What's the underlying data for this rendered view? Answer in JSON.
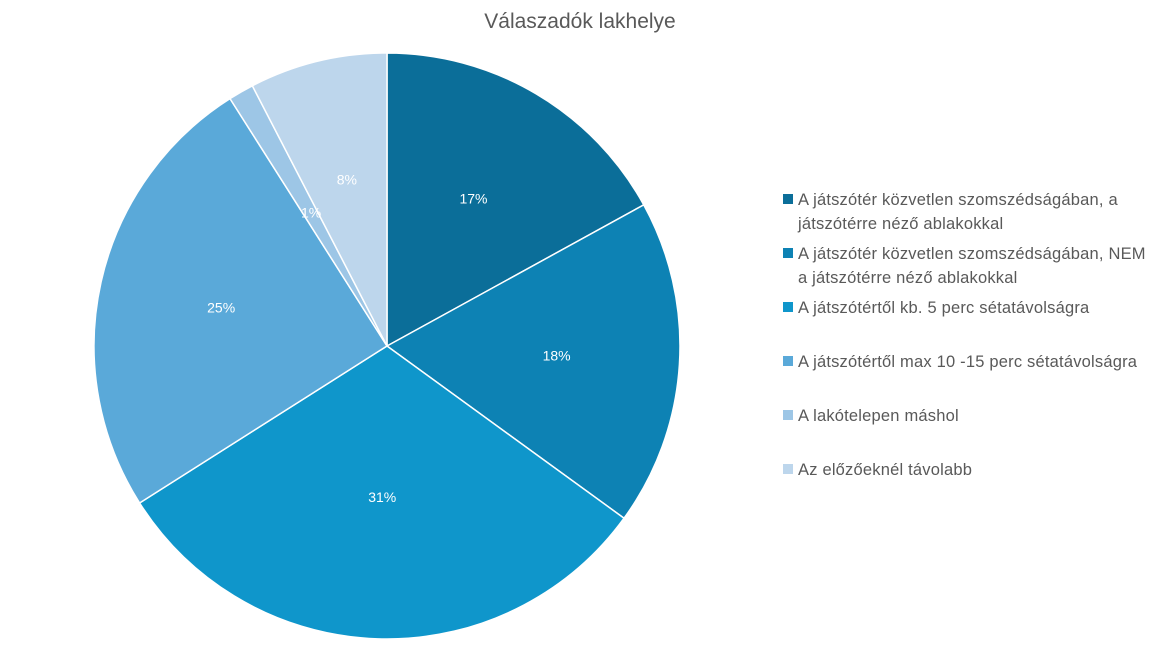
{
  "chart_data": {
    "type": "pie",
    "title": "Válaszadók lakhelye",
    "legend_position": "right",
    "slices": [
      {
        "name": "A játszótér közvetlen szomszédságában, a játszótérre néző ablakokkal",
        "value": 17,
        "label": "17%",
        "color": "#0b6e99"
      },
      {
        "name": "A játszótér közvetlen szomszédságában, NEM a játszótérre néző ablakokkal",
        "value": 18,
        "label": "18%",
        "color": "#0d82b4"
      },
      {
        "name": "A játszótértől kb. 5 perc sétatávolságra",
        "value": 31,
        "label": "31%",
        "color": "#0f96cb"
      },
      {
        "name": "A játszótértől max 10 -15 perc sétatávolságra",
        "value": 25,
        "label": "25%",
        "color": "#5aa9d9"
      },
      {
        "name": "A lakótelepen máshol",
        "value": 1.4,
        "label": "1%",
        "color": "#9dc6e6"
      },
      {
        "name": "Az előzőeknél távolabb",
        "value": 7.6,
        "label": "8%",
        "color": "#bdd6ec"
      }
    ]
  }
}
